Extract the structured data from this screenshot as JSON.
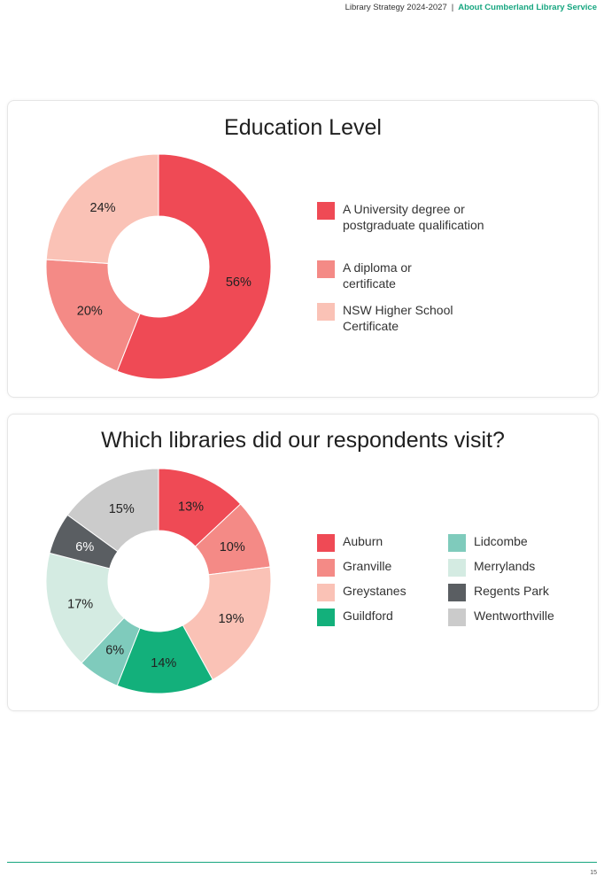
{
  "header": {
    "doc_title": "Library Strategy 2024-2027",
    "separator": "|",
    "section": "About Cumberland Library Service"
  },
  "page_number": "15",
  "chart_data": [
    {
      "type": "pie",
      "donut": true,
      "title": "Education Level",
      "categories": [
        "A University degree or postgraduate qualification",
        "A diploma or certificate",
        "NSW Higher School Certificate"
      ],
      "values": [
        56,
        20,
        24
      ],
      "value_labels": [
        "56%",
        "20%",
        "24%"
      ],
      "colors": [
        "#ef4a55",
        "#f48a86",
        "#fac2b6"
      ],
      "label_colors": [
        "#222222",
        "#222222",
        "#222222"
      ],
      "legend_position": "right"
    },
    {
      "type": "pie",
      "donut": true,
      "title": "Which libraries did our respondents visit?",
      "categories": [
        "Auburn",
        "Granville",
        "Greystanes",
        "Guildford",
        "Lidcombe",
        "Merrylands",
        "Regents Park",
        "Wentworthville"
      ],
      "values": [
        13,
        10,
        19,
        14,
        6,
        17,
        6,
        15
      ],
      "value_labels": [
        "13%",
        "10%",
        "19%",
        "14%",
        "6%",
        "17%",
        "6%",
        "15%"
      ],
      "colors": [
        "#ef4a55",
        "#f48a86",
        "#fac2b6",
        "#13b07b",
        "#7fcbbc",
        "#d4ebe2",
        "#5a5e62",
        "#cbcbcb"
      ],
      "label_colors": [
        "#222222",
        "#222222",
        "#222222",
        "#222222",
        "#222222",
        "#222222",
        "#ffffff",
        "#222222"
      ],
      "legend_position": "right"
    }
  ]
}
